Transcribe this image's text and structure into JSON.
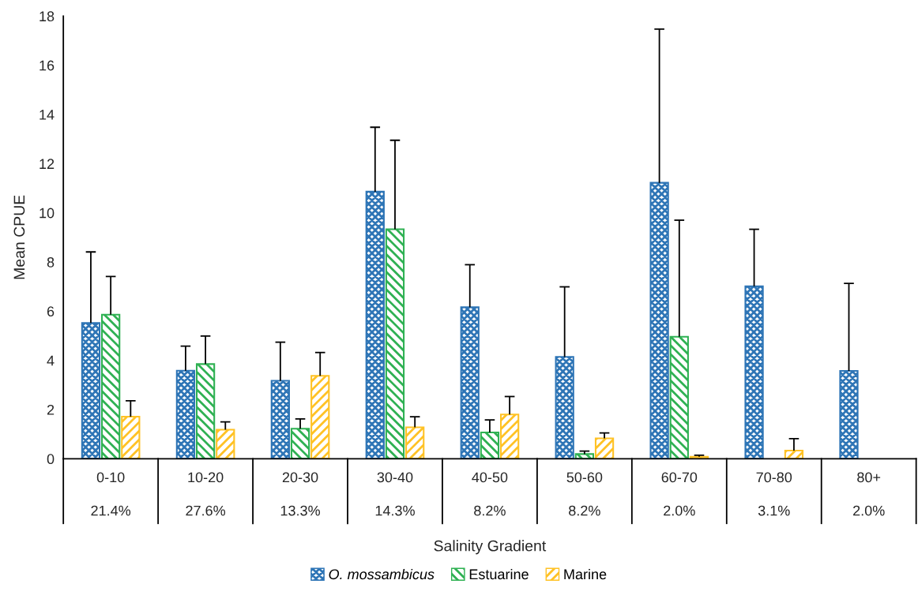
{
  "chart_data": {
    "type": "bar",
    "xlabel": "Salinity Gradient",
    "ylabel": "Mean CPUE",
    "categories": [
      "0-10",
      "10-20",
      "20-30",
      "30-40",
      "40-50",
      "50-60",
      "60-70",
      "70-80",
      "80+"
    ],
    "series": [
      {
        "name": "O. mossambicus",
        "color": "#2e75b6",
        "values": [
          5.52,
          3.58,
          3.17,
          10.86,
          6.16,
          4.14,
          11.22,
          7.01,
          3.57
        ],
        "errors": [
          [
            5.52,
            8.41
          ],
          [
            3.58,
            4.58
          ],
          [
            3.17,
            4.74
          ],
          [
            10.86,
            13.48
          ],
          [
            6.16,
            7.89
          ],
          [
            4.14,
            6.99
          ],
          [
            11.22,
            17.47
          ],
          [
            7.01,
            9.33
          ],
          [
            3.57,
            7.13
          ]
        ]
      },
      {
        "name": "Estuarine",
        "color": "#2fb153",
        "values": [
          5.86,
          3.85,
          1.22,
          9.33,
          1.07,
          0.19,
          4.96,
          null,
          null
        ],
        "errors": [
          [
            5.86,
            7.41
          ],
          [
            3.85,
            4.99
          ],
          [
            1.22,
            1.62
          ],
          [
            9.33,
            12.95
          ],
          [
            1.07,
            1.58
          ],
          [
            0.19,
            0.31
          ],
          [
            4.96,
            9.7
          ],
          null,
          null
        ]
      },
      {
        "name": "Marine",
        "color": "#ffc225",
        "values": [
          1.71,
          1.18,
          3.37,
          1.28,
          1.8,
          0.83,
          0.08,
          0.33,
          null
        ],
        "errors": [
          [
            1.71,
            2.36
          ],
          [
            1.18,
            1.5
          ],
          [
            3.37,
            4.32
          ],
          [
            1.28,
            1.71
          ],
          [
            1.8,
            2.53
          ],
          [
            0.83,
            1.05
          ],
          [
            0.08,
            0.14
          ],
          [
            0.33,
            0.82
          ],
          null
        ]
      }
    ],
    "ylim": [
      0,
      18
    ],
    "yticks": [
      0,
      2,
      4,
      6,
      8,
      10,
      12,
      14,
      16,
      18
    ],
    "grid": false,
    "legend": "bottom",
    "annotations": [
      "21.4%",
      "27.6%",
      "13.3%",
      "14.3%",
      "8.2%",
      "8.2%",
      "2.0%",
      "3.1%",
      "2.0%"
    ]
  }
}
